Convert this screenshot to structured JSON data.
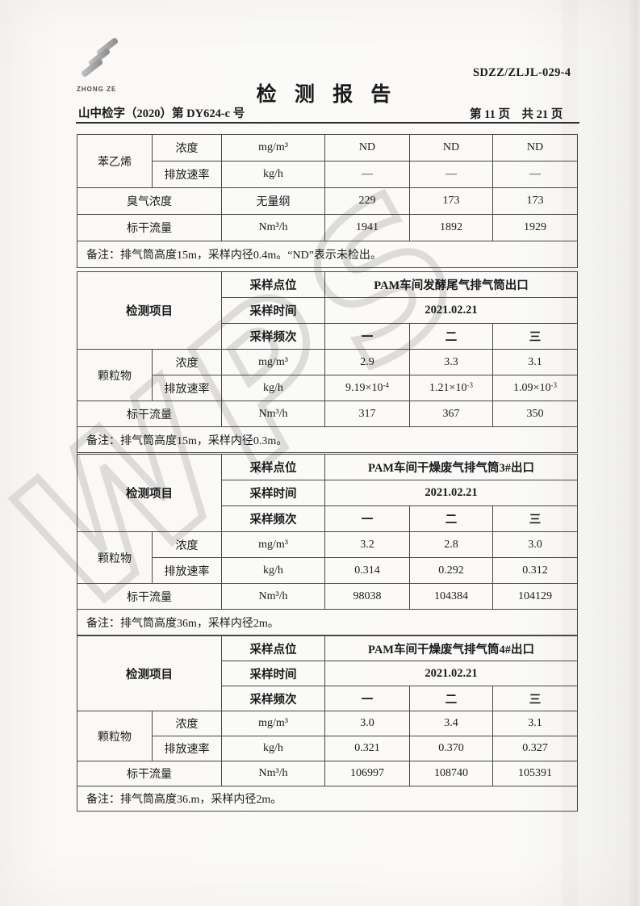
{
  "header": {
    "logo_text": "ZHONG ZE",
    "doc_code": "SDZZ/ZLJL-029-4",
    "title": "检 测 报 告",
    "report_no": "山中检字（2020）第 DY624-c 号",
    "page_info": "第 11 页　共 21 页"
  },
  "watermark": "WPS",
  "table1": {
    "param": "苯乙烯",
    "conc": {
      "label": "浓度",
      "unit": "mg/m³",
      "values": [
        "ND",
        "ND",
        "ND"
      ]
    },
    "rate": {
      "label": "排放速率",
      "unit": "kg/h",
      "values": [
        "—",
        "—",
        "—"
      ]
    },
    "odor": {
      "label": "臭气浓度",
      "unit": "无量纲",
      "values": [
        "229",
        "173",
        "173"
      ]
    },
    "flow": {
      "label": "标干流量",
      "unit": "Nm³/h",
      "values": [
        "1941",
        "1892",
        "1929"
      ]
    },
    "note": "备注：排气筒高度15m，采样内径0.4m。“ND”表示未检出。"
  },
  "table2": {
    "project_label": "检测项目",
    "point_label": "采样点位",
    "point_value": "PAM车间发酵尾气排气筒出口",
    "time_label": "采样时间",
    "time_value": "2021.02.21",
    "freq_label": "采样频次",
    "freq_values": [
      "一",
      "二",
      "三"
    ],
    "param": "颗粒物",
    "conc": {
      "label": "浓度",
      "unit": "mg/m³",
      "values": [
        "2.9",
        "3.3",
        "3.1"
      ]
    },
    "rate": {
      "label": "排放速率",
      "unit": "kg/h",
      "values": [
        {
          "m": "9.19×10",
          "e": "-4"
        },
        {
          "m": "1.21×10",
          "e": "-3"
        },
        {
          "m": "1.09×10",
          "e": "-3"
        }
      ]
    },
    "flow": {
      "label": "标干流量",
      "unit": "Nm³/h",
      "values": [
        "317",
        "367",
        "350"
      ]
    },
    "note": "备注：排气筒高度15m，采样内径0.3m。"
  },
  "table3": {
    "project_label": "检测项目",
    "point_label": "采样点位",
    "point_value": "PAM车间干燥废气排气筒3#出口",
    "time_label": "采样时间",
    "time_value": "2021.02.21",
    "freq_label": "采样频次",
    "freq_values": [
      "一",
      "二",
      "三"
    ],
    "param": "颗粒物",
    "conc": {
      "label": "浓度",
      "unit": "mg/m³",
      "values": [
        "3.2",
        "2.8",
        "3.0"
      ]
    },
    "rate": {
      "label": "排放速率",
      "unit": "kg/h",
      "values": [
        "0.314",
        "0.292",
        "0.312"
      ]
    },
    "flow": {
      "label": "标干流量",
      "unit": "Nm³/h",
      "values": [
        "98038",
        "104384",
        "104129"
      ]
    },
    "note": "备注：排气筒高度36m，采样内径2m。"
  },
  "table4": {
    "project_label": "检测项目",
    "point_label": "采样点位",
    "point_value": "PAM车间干燥废气排气筒4#出口",
    "time_label": "采样时间",
    "time_value": "2021.02.21",
    "freq_label": "采样频次",
    "freq_values": [
      "一",
      "二",
      "三"
    ],
    "param": "颗粒物",
    "conc": {
      "label": "浓度",
      "unit": "mg/m³",
      "values": [
        "3.0",
        "3.4",
        "3.1"
      ]
    },
    "rate": {
      "label": "排放速率",
      "unit": "kg/h",
      "values": [
        "0.321",
        "0.370",
        "0.327"
      ]
    },
    "flow": {
      "label": "标干流量",
      "unit": "Nm³/h",
      "values": [
        "106997",
        "108740",
        "105391"
      ]
    },
    "note": "备注：排气筒高度36.m，采样内径2m。"
  }
}
